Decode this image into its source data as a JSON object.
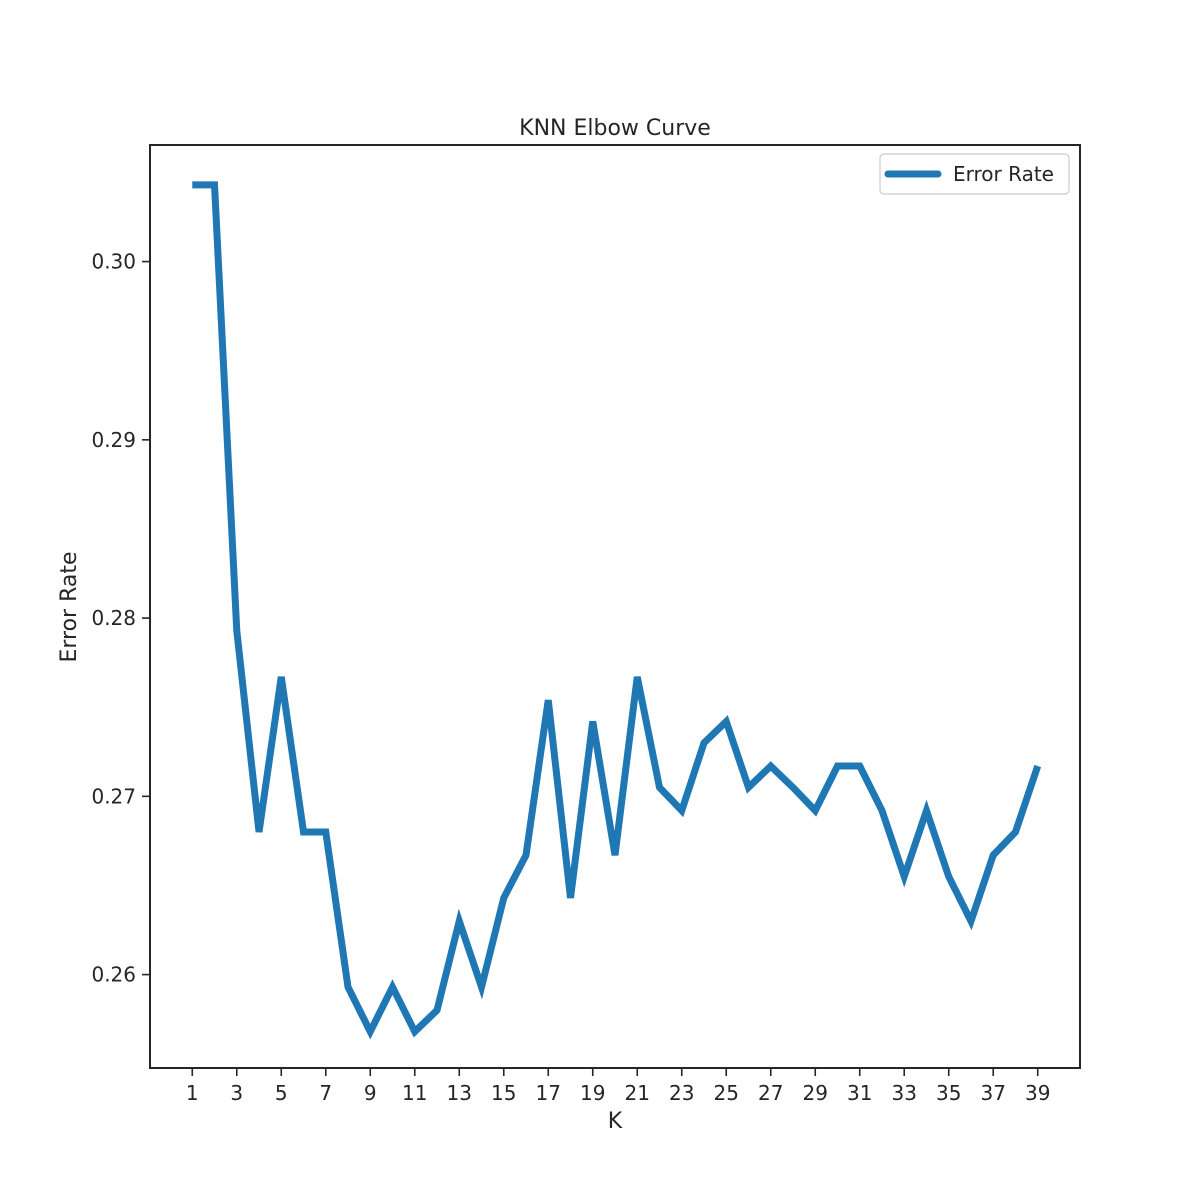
{
  "chart_data": {
    "type": "line",
    "title": "KNN Elbow Curve",
    "xlabel": "K",
    "ylabel": "Error Rate",
    "x": [
      1,
      2,
      3,
      4,
      5,
      6,
      7,
      8,
      9,
      10,
      11,
      12,
      13,
      14,
      15,
      16,
      17,
      18,
      19,
      20,
      21,
      22,
      23,
      24,
      25,
      26,
      27,
      28,
      29,
      30,
      31,
      32,
      33,
      34,
      35,
      36,
      37,
      38,
      39
    ],
    "series": [
      {
        "name": "Error Rate",
        "color": "#1f77b4",
        "values": [
          0.3043,
          0.3043,
          0.2793,
          0.268,
          0.2767,
          0.268,
          0.268,
          0.2593,
          0.2568,
          0.2593,
          0.2568,
          0.258,
          0.263,
          0.2593,
          0.2643,
          0.2667,
          0.2754,
          0.2643,
          0.2742,
          0.2667,
          0.2767,
          0.2705,
          0.2692,
          0.273,
          0.2742,
          0.2705,
          0.2717,
          0.2705,
          0.2692,
          0.2717,
          0.2717,
          0.2692,
          0.2655,
          0.2692,
          0.2655,
          0.263,
          0.2667,
          0.268,
          0.2717
        ]
      }
    ],
    "xticks": [
      1,
      3,
      5,
      7,
      9,
      11,
      13,
      15,
      17,
      19,
      21,
      23,
      25,
      27,
      29,
      31,
      33,
      35,
      37,
      39
    ],
    "xtick_labels": [
      "1",
      "3",
      "5",
      "7",
      "9",
      "11",
      "13",
      "15",
      "17",
      "19",
      "21",
      "23",
      "25",
      "27",
      "29",
      "31",
      "33",
      "35",
      "37",
      "39"
    ],
    "yticks": [
      0.26,
      0.27,
      0.28,
      0.29,
      0.3
    ],
    "ytick_labels": [
      "0.26",
      "0.27",
      "0.28",
      "0.29",
      "0.30"
    ],
    "xlim": [
      -0.9,
      40.9
    ],
    "ylim": [
      0.25476,
      0.30654
    ],
    "grid": false,
    "legend_position": "upper right"
  }
}
